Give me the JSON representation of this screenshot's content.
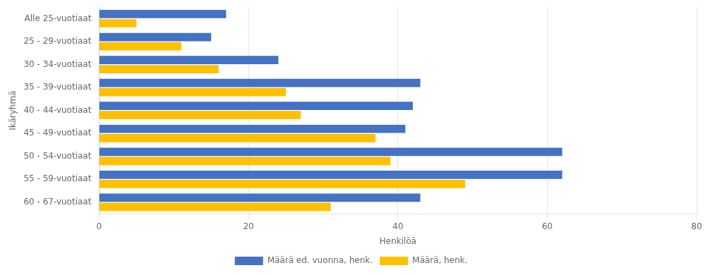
{
  "chart_data": {
    "type": "bar",
    "orientation": "horizontal",
    "categories": [
      "Alle 25-vuotiaat",
      "25 - 29-vuotiaat",
      "30 - 34-vuotiaat",
      "35 - 39-vuotiaat",
      "40 - 44-vuotiaat",
      "45 - 49-vuotiaat",
      "50 - 54-vuotiaat",
      "55 - 59-vuotiaat",
      "60 - 67-vuotiaat"
    ],
    "series": [
      {
        "name": "Määrä ed. vuonna, henk.",
        "color": "#4472C4",
        "values": [
          17,
          15,
          24,
          43,
          42,
          41,
          62,
          62,
          43
        ]
      },
      {
        "name": "Määrä, henk.",
        "color": "#FFC000",
        "values": [
          5,
          11,
          16,
          25,
          27,
          37,
          39,
          49,
          31
        ]
      }
    ],
    "xlabel": "Henkilöä",
    "ylabel": "Ikäryhmä",
    "xlim": [
      0,
      80
    ],
    "xticks": [
      0,
      20,
      40,
      60,
      80
    ],
    "grid": "x",
    "legend": "bottom"
  }
}
